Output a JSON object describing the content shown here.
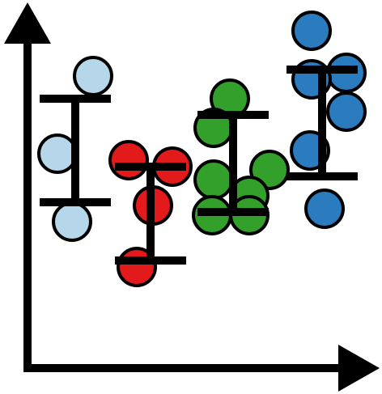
{
  "chart_data": {
    "type": "scatter",
    "style": "dot plot with error bars, icon style",
    "grid": false,
    "axes": {
      "arrows": true,
      "ticks": false,
      "tick_labels": false
    },
    "ylim": [
      0,
      10
    ],
    "series": [
      {
        "color": "#b6d7ea",
        "points": [
          8.4,
          6.0,
          3.9
        ],
        "error_bar": {
          "upper": 7.7,
          "lower": 4.5
        }
      },
      {
        "color": "#e31a1c",
        "points": [
          5.8,
          5.6,
          4.4,
          2.5
        ],
        "error_bar": {
          "upper": 5.6,
          "lower": 2.7
        }
      },
      {
        "color": "#33a02c",
        "points": [
          7.7,
          6.8,
          5.5,
          5.2,
          4.7,
          4.1,
          4.1
        ],
        "error_bar": {
          "upper": 7.2,
          "lower": 4.2
        }
      },
      {
        "color": "#2b7bbf",
        "points": [
          9.8,
          8.5,
          8.3,
          7.3,
          6.1,
          4.3
        ],
        "error_bar": {
          "upper": 8.6,
          "lower": 5.3
        }
      }
    ]
  }
}
